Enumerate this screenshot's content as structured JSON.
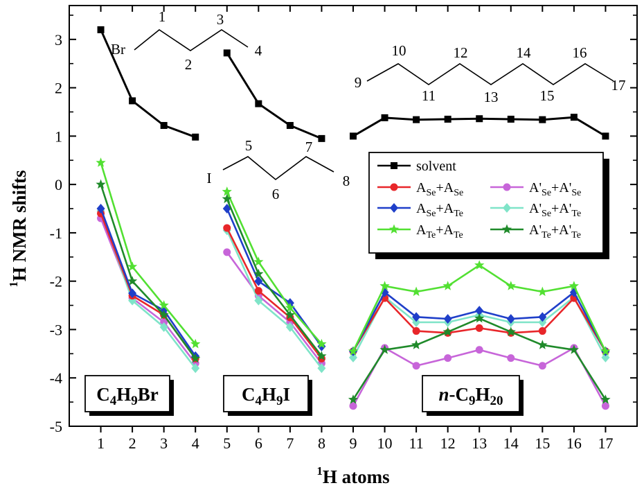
{
  "chart_data": {
    "type": "line",
    "xlabel": "1H atoms",
    "ylabel": "1H NMR shifts",
    "xlim": [
      0,
      18
    ],
    "ylim": [
      -5,
      3.7
    ],
    "x_ticks": [
      "1",
      "2",
      "3",
      "4",
      "5",
      "6",
      "7",
      "8",
      "9",
      "10",
      "11",
      "12",
      "13",
      "14",
      "15",
      "16",
      "17"
    ],
    "y_ticks": [
      "3",
      "2",
      "1",
      "0",
      "-1",
      "-2",
      "-3",
      "-4",
      "-5"
    ],
    "groups": [
      {
        "name": "C4H9Br",
        "x": [
          1,
          2,
          3,
          4
        ]
      },
      {
        "name": "C4H9I",
        "x": [
          5,
          6,
          7,
          8
        ]
      },
      {
        "name": "n-C9H20",
        "x": [
          9,
          10,
          11,
          12,
          13,
          14,
          15,
          16,
          17
        ]
      }
    ],
    "series": [
      {
        "name": "solvent",
        "color": "#000000",
        "marker": "square",
        "values": [
          3.2,
          1.73,
          1.22,
          0.98,
          2.72,
          1.67,
          1.22,
          0.95,
          1.0,
          1.38,
          1.34,
          1.35,
          1.36,
          1.35,
          1.34,
          1.39,
          1.0
        ]
      },
      {
        "name": "ASe+ASe",
        "color": "#e8262a",
        "marker": "circle",
        "values": [
          -0.6,
          -2.3,
          -2.7,
          -3.6,
          -0.9,
          -2.2,
          -2.75,
          -3.6,
          -3.45,
          -2.35,
          -3.03,
          -3.07,
          -2.97,
          -3.07,
          -3.03,
          -2.35,
          -3.45
        ]
      },
      {
        "name": "ASe+ATe",
        "color": "#1f3fc9",
        "marker": "diamond",
        "values": [
          -0.5,
          -2.25,
          -2.6,
          -3.55,
          -0.5,
          -2.0,
          -2.45,
          -3.35,
          -3.45,
          -2.23,
          -2.74,
          -2.78,
          -2.61,
          -2.78,
          -2.74,
          -2.23,
          -3.45
        ]
      },
      {
        "name": "ATe+ATe",
        "color": "#52e032",
        "marker": "star",
        "values": [
          0.45,
          -1.7,
          -2.5,
          -3.3,
          -0.15,
          -1.6,
          -2.55,
          -3.3,
          -3.45,
          -2.1,
          -2.22,
          -2.1,
          -1.67,
          -2.1,
          -2.22,
          -2.1,
          -3.45
        ]
      },
      {
        "name": "A'Se+A'Se",
        "color": "#c765d9",
        "marker": "circle",
        "values": [
          -0.7,
          -2.35,
          -2.85,
          -3.7,
          -1.4,
          -2.3,
          -2.85,
          -3.7,
          -4.58,
          -3.38,
          -3.75,
          -3.59,
          -3.42,
          -3.59,
          -3.75,
          -3.38,
          -4.58
        ]
      },
      {
        "name": "A'Se+A'Te",
        "color": "#7fe4c8",
        "marker": "diamond",
        "values": [
          -0.55,
          -2.4,
          -2.95,
          -3.8,
          -0.95,
          -2.4,
          -2.95,
          -3.8,
          -3.58,
          -2.33,
          -2.85,
          -2.85,
          -2.7,
          -2.85,
          -2.85,
          -2.33,
          -3.58
        ]
      },
      {
        "name": "A'Te+A'Te",
        "color": "#1f8a2a",
        "marker": "star",
        "values": [
          0.0,
          -2.0,
          -2.7,
          -3.6,
          -0.3,
          -1.85,
          -2.7,
          -3.55,
          -4.45,
          -3.42,
          -3.32,
          -3.05,
          -2.77,
          -3.05,
          -3.32,
          -3.42,
          -4.45
        ]
      }
    ],
    "legend": {
      "position": "upper-right",
      "entries": [
        {
          "series": "solvent",
          "main": "solvent"
        },
        {
          "series": "ASe+ASe",
          "main": "A",
          "sub": "Se",
          "mid": "+A",
          "sub2": "Se"
        },
        {
          "series": "A'Se+A'Se",
          "main": "A'",
          "sub": "Se",
          "mid": "+A'",
          "sub2": "Se"
        },
        {
          "series": "ASe+ATe",
          "main": "A",
          "sub": "Se",
          "mid": "+A",
          "sub2": "Te"
        },
        {
          "series": "A'Se+A'Te",
          "main": "A'",
          "sub": "Se",
          "mid": "+A'",
          "sub2": "Te"
        },
        {
          "series": "ATe+ATe",
          "main": "A",
          "sub": "Te",
          "mid": "+A",
          "sub2": "Te"
        },
        {
          "series": "A'Te+A'Te",
          "main": "A'",
          "sub": "Te",
          "mid": "+A'",
          "sub2": "Te"
        }
      ]
    },
    "boxes": [
      {
        "parts": [
          [
            "C",
            ""
          ],
          [
            "4",
            "sub"
          ],
          [
            "H",
            ""
          ],
          [
            "9",
            "sub"
          ],
          [
            "Br",
            ""
          ]
        ]
      },
      {
        "parts": [
          [
            "C",
            ""
          ],
          [
            "4",
            "sub"
          ],
          [
            "H",
            ""
          ],
          [
            "9",
            "sub"
          ],
          [
            "I",
            ""
          ]
        ]
      },
      {
        "parts": [
          [
            "n",
            "italic"
          ],
          [
            "-C",
            ""
          ],
          [
            "9",
            "sub"
          ],
          [
            "H",
            ""
          ],
          [
            "20",
            "sub"
          ]
        ]
      }
    ],
    "structures": [
      {
        "atom": "Br",
        "labels": [
          "1",
          "2",
          "3",
          "4"
        ]
      },
      {
        "atom": "I",
        "labels": [
          "5",
          "6",
          "7",
          "8"
        ]
      },
      {
        "atom": "",
        "labels": [
          "9",
          "10",
          "11",
          "12",
          "13",
          "14",
          "15",
          "16",
          "17"
        ]
      }
    ]
  }
}
